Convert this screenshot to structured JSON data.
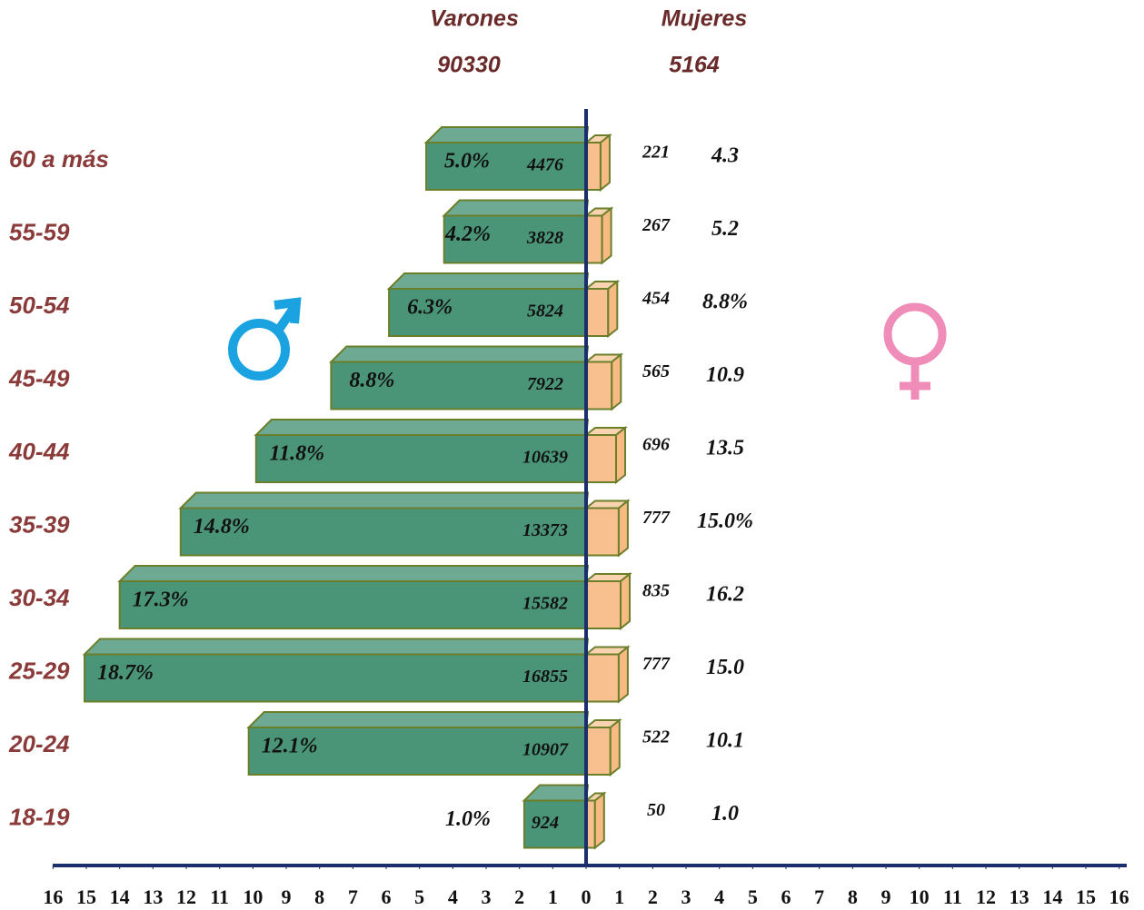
{
  "chart_data": {
    "type": "pyramid",
    "categories": [
      "60 a más",
      "55-59",
      "50-54",
      "45-49",
      "40-44",
      "35-39",
      "30-34",
      "25-29",
      "20-24",
      "18-19"
    ],
    "series": [
      {
        "name": "Varones",
        "total": 90330,
        "color": "#4a9578",
        "values": [
          4476,
          3828,
          5824,
          7922,
          10639,
          13373,
          15582,
          16855,
          10907,
          924
        ],
        "percent": [
          5.0,
          4.2,
          6.3,
          8.8,
          11.8,
          14.8,
          17.3,
          18.7,
          12.1,
          1.0
        ],
        "percent_labels": [
          "5.0%",
          "4.2%",
          "6.3%",
          "8.8%",
          "11.8%",
          "14.8%",
          "17.3%",
          "18.7%",
          "12.1%",
          "1.0%"
        ]
      },
      {
        "name": "Mujeres",
        "total": 5164,
        "color": "#f8c08e",
        "values": [
          221,
          267,
          454,
          565,
          696,
          777,
          835,
          777,
          522,
          50
        ],
        "percent": [
          4.3,
          5.2,
          8.8,
          10.9,
          13.5,
          15.0,
          16.2,
          15.0,
          10.1,
          1.0
        ],
        "percent_labels": [
          "4.3",
          "5.2",
          "8.8%",
          "10.9",
          "13.5",
          "15.0%",
          "16.2",
          "15.0",
          "10.1",
          "1.0"
        ]
      }
    ],
    "xlim": [
      -16.5,
      16.5
    ],
    "xticks": [
      {
        "value": -16,
        "label": "16"
      },
      {
        "value": -15,
        "label": "15"
      },
      {
        "value": -14,
        "label": "14"
      },
      {
        "value": -13,
        "label": "13"
      },
      {
        "value": -12,
        "label": "12"
      },
      {
        "value": -11,
        "label": "11"
      },
      {
        "value": -10,
        "label": "10"
      },
      {
        "value": -9,
        "label": "9"
      },
      {
        "value": -8,
        "label": "8"
      },
      {
        "value": -7,
        "label": "7"
      },
      {
        "value": -6,
        "label": "6"
      },
      {
        "value": -5,
        "label": "5"
      },
      {
        "value": -4,
        "label": "4"
      },
      {
        "value": -3,
        "label": "3"
      },
      {
        "value": -2,
        "label": "2"
      },
      {
        "value": -1,
        "label": "1"
      },
      0,
      1,
      2,
      3,
      4,
      5,
      6,
      7,
      8,
      9,
      10,
      11,
      12,
      13,
      14,
      15,
      16
    ]
  }
}
